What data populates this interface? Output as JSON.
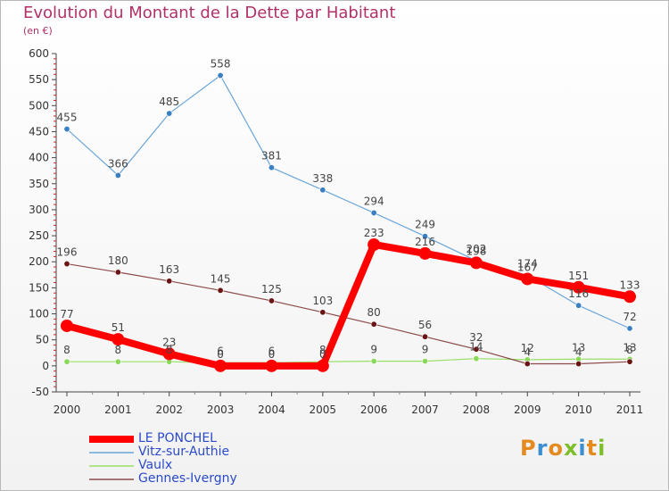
{
  "title": "Evolution du Montant de la Dette par Habitant",
  "unit_label": "(en €)",
  "logo": {
    "text": "Proxiti",
    "colors": [
      "#e58a1f",
      "#3b8ed0",
      "#e58a1f",
      "#7cbf2a",
      "#3b8ed0",
      "#e58a1f",
      "#7cbf2a"
    ]
  },
  "chart_data": {
    "type": "line",
    "x": [
      "2000",
      "2001",
      "2002",
      "2003",
      "2004",
      "2005",
      "2006",
      "2007",
      "2008",
      "2009",
      "2010",
      "2011"
    ],
    "ylim": [
      -50,
      600
    ],
    "yticks": [
      -50,
      0,
      50,
      100,
      150,
      200,
      250,
      300,
      350,
      400,
      450,
      500,
      550,
      600
    ],
    "grid": false,
    "legend_position": "bottom-left",
    "series": [
      {
        "name": "LE PONCHEL",
        "color": "#ff0000",
        "values": [
          77,
          51,
          23,
          0,
          0,
          0,
          233,
          216,
          198,
          167,
          151,
          133
        ],
        "labels": [
          "77",
          "51",
          "23",
          "0",
          "0",
          "0",
          "233",
          "216",
          "198",
          "167",
          "151",
          "133"
        ]
      },
      {
        "name": "Vitz-sur-Authie",
        "color": "#6aa6d8",
        "values": [
          455,
          366,
          485,
          558,
          381,
          338,
          294,
          249,
          202,
          174,
          116,
          72
        ],
        "labels": [
          "455",
          "366",
          "485",
          "558",
          "381",
          "338",
          "294",
          "249",
          "202",
          "174",
          "116",
          "72"
        ]
      },
      {
        "name": "Vaulx",
        "color": "#99e066",
        "values": [
          8,
          8,
          8,
          6,
          6,
          8,
          9,
          9,
          14,
          12,
          13,
          13
        ],
        "labels": [
          "8",
          "8",
          "8",
          "6",
          "6",
          "8",
          "9",
          "9",
          "14",
          "12",
          "13",
          "13"
        ]
      },
      {
        "name": "Gennes-Ivergny",
        "color": "#7a2a2a",
        "values": [
          196,
          180,
          163,
          145,
          125,
          103,
          80,
          56,
          32,
          4,
          4,
          8
        ],
        "labels": [
          "196",
          "180",
          "163",
          "145",
          "125",
          "103",
          "80",
          "56",
          "32",
          "4",
          "4",
          "8"
        ]
      }
    ]
  }
}
